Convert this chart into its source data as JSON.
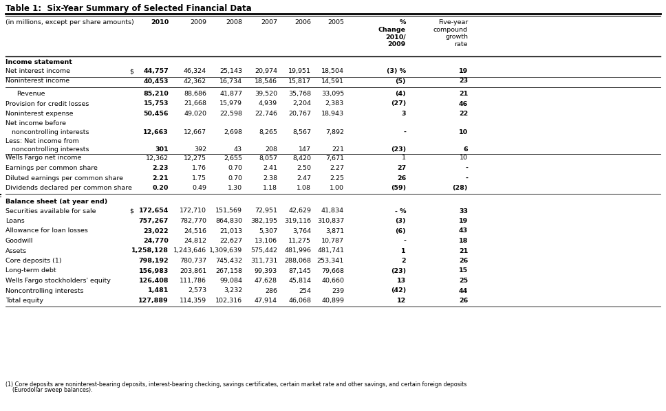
{
  "title": "Table 1:  Six-Year Summary of Selected Financial Data",
  "col_headers": [
    "(in millions, except per share amounts)",
    "2010",
    "2009",
    "2008",
    "2007",
    "2006",
    "2005",
    "%\nChange\n2010/\n2009",
    "Five-year\ncompound\ngrowth\nrate"
  ],
  "rows": [
    {
      "type": "section",
      "label": "Income statement"
    },
    {
      "type": "data",
      "label": "Net interest income",
      "dollar": true,
      "ul": true,
      "b2010": true,
      "vals": [
        "44,757",
        "46,324",
        "25,143",
        "20,974",
        "19,951",
        "18,504",
        "(3) %",
        "19"
      ]
    },
    {
      "type": "data",
      "label": "Noninterest income",
      "dollar": false,
      "ul": true,
      "b2010": true,
      "vals": [
        "40,453",
        "42,362",
        "16,734",
        "18,546",
        "15,817",
        "14,591",
        "(5)",
        "23"
      ]
    },
    {
      "type": "space"
    },
    {
      "type": "data",
      "label": "Revenue",
      "dollar": false,
      "ul": false,
      "b2010": true,
      "indent": true,
      "vals": [
        "85,210",
        "88,686",
        "41,877",
        "39,520",
        "35,768",
        "33,095",
        "(4)",
        "21"
      ]
    },
    {
      "type": "data",
      "label": "Provision for credit losses",
      "dollar": false,
      "ul": false,
      "b2010": true,
      "vals": [
        "15,753",
        "21,668",
        "15,979",
        "4,939",
        "2,204",
        "2,383",
        "(27)",
        "46"
      ]
    },
    {
      "type": "data",
      "label": "Noninterest expense",
      "dollar": false,
      "ul": false,
      "b2010": true,
      "vals": [
        "50,456",
        "49,020",
        "22,598",
        "22,746",
        "20,767",
        "18,943",
        "3",
        "22"
      ]
    },
    {
      "type": "data2",
      "label": "Net income before",
      "label2": "   noncontrolling interests",
      "dollar": false,
      "ul": false,
      "b2010": true,
      "vals": [
        "12,663",
        "12,667",
        "2,698",
        "8,265",
        "8,567",
        "7,892",
        "-",
        "10"
      ]
    },
    {
      "type": "data2",
      "label": "Less: Net income from",
      "label2": "   noncontrolling interests",
      "dollar": false,
      "ul": true,
      "b2010": true,
      "vals": [
        "301",
        "392",
        "43",
        "208",
        "147",
        "221",
        "(23)",
        "6"
      ]
    },
    {
      "type": "data",
      "label": "Wells Fargo net income",
      "dollar": false,
      "ul": false,
      "b2010": false,
      "vals": [
        "12,362",
        "12,275",
        "2,655",
        "8,057",
        "8,420",
        "7,671",
        "1",
        "10"
      ]
    },
    {
      "type": "data",
      "label": "Earnings per common share",
      "dollar": false,
      "ul": false,
      "b2010": true,
      "vals": [
        "2.23",
        "1.76",
        "0.70",
        "2.41",
        "2.50",
        "2.27",
        "27",
        "-"
      ]
    },
    {
      "type": "data",
      "label": "Diluted earnings per common share",
      "dollar": false,
      "ul": false,
      "b2010": true,
      "vals": [
        "2.21",
        "1.75",
        "0.70",
        "2.38",
        "2.47",
        "2.25",
        "26",
        "-"
      ]
    },
    {
      "type": "data",
      "label": "Dividends declared per common share",
      "dollar": false,
      "ul": true,
      "b2010": true,
      "vals": [
        "0.20",
        "0.49",
        "1.30",
        "1.18",
        "1.08",
        "1.00",
        "(59)",
        "(28)"
      ]
    },
    {
      "type": "section_double",
      "label": "Balance sheet (at year end)"
    },
    {
      "type": "data",
      "label": "Securities available for sale",
      "dollar": true,
      "ul": false,
      "b2010": true,
      "vals": [
        "172,654",
        "172,710",
        "151,569",
        "72,951",
        "42,629",
        "41,834",
        "- %",
        "33"
      ]
    },
    {
      "type": "data",
      "label": "Loans",
      "dollar": false,
      "ul": false,
      "b2010": true,
      "vals": [
        "757,267",
        "782,770",
        "864,830",
        "382,195",
        "319,116",
        "310,837",
        "(3)",
        "19"
      ]
    },
    {
      "type": "data",
      "label": "Allowance for loan losses",
      "dollar": false,
      "ul": false,
      "b2010": true,
      "vals": [
        "23,022",
        "24,516",
        "21,013",
        "5,307",
        "3,764",
        "3,871",
        "(6)",
        "43"
      ]
    },
    {
      "type": "data",
      "label": "Goodwill",
      "dollar": false,
      "ul": false,
      "b2010": true,
      "vals": [
        "24,770",
        "24,812",
        "22,627",
        "13,106",
        "11,275",
        "10,787",
        "-",
        "18"
      ]
    },
    {
      "type": "data",
      "label": "Assets",
      "dollar": false,
      "ul": false,
      "b2010": true,
      "vals": [
        "1,258,128",
        "1,243,646",
        "1,309,639",
        "575,442",
        "481,996",
        "481,741",
        "1",
        "21"
      ]
    },
    {
      "type": "data",
      "label": "Core deposits (1)",
      "dollar": false,
      "ul": false,
      "b2010": true,
      "vals": [
        "798,192",
        "780,737",
        "745,432",
        "311,731",
        "288,068",
        "253,341",
        "2",
        "26"
      ]
    },
    {
      "type": "data",
      "label": "Long-term debt",
      "dollar": false,
      "ul": false,
      "b2010": true,
      "vals": [
        "156,983",
        "203,861",
        "267,158",
        "99,393",
        "87,145",
        "79,668",
        "(23)",
        "15"
      ]
    },
    {
      "type": "data",
      "label": "Wells Fargo stockholders' equity",
      "dollar": false,
      "ul": false,
      "b2010": true,
      "vals": [
        "126,408",
        "111,786",
        "99,084",
        "47,628",
        "45,814",
        "40,660",
        "13",
        "25"
      ]
    },
    {
      "type": "data",
      "label": "Noncontrolling interests",
      "dollar": false,
      "ul": false,
      "b2010": true,
      "vals": [
        "1,481",
        "2,573",
        "3,232",
        "286",
        "254",
        "239",
        "(42)",
        "44"
      ]
    },
    {
      "type": "data",
      "label": "Total equity",
      "dollar": false,
      "ul": true,
      "b2010": true,
      "vals": [
        "127,889",
        "114,359",
        "102,316",
        "47,914",
        "46,068",
        "40,899",
        "12",
        "26"
      ]
    }
  ],
  "footnote1": "(1) Core deposits are noninterest-bearing deposits, interest-bearing checking, savings certificates, certain market rate and other savings, and certain foreign deposits",
  "footnote2": "    (Eurodollar sweep balances).",
  "bg_color": "#ffffff",
  "text_color": "#000000"
}
